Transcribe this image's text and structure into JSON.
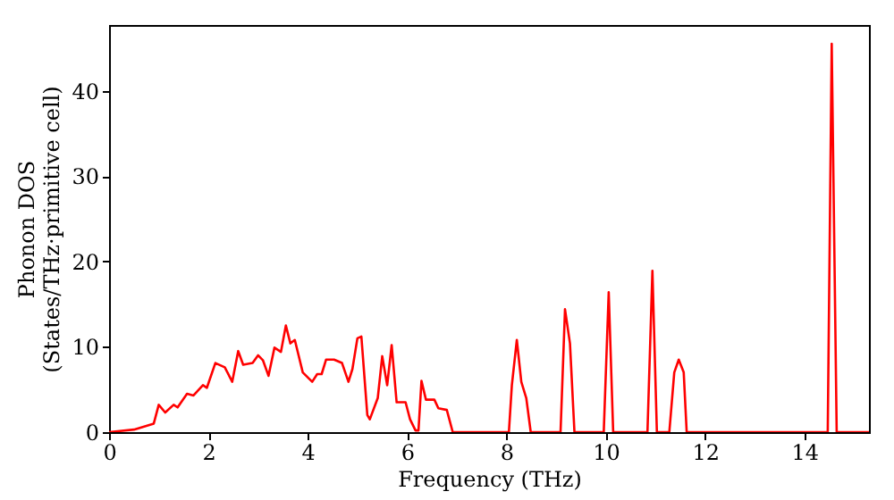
{
  "chart_data": {
    "type": "line",
    "xlabel": "Frequency (THz)",
    "ylabel": "Phonon DOS\n(States/THz·primitive cell)",
    "xlim": [
      0,
      15.3
    ],
    "ylim": [
      0,
      47.7
    ],
    "xticks": [
      0,
      2,
      4,
      6,
      8,
      10,
      12,
      14
    ],
    "yticks": [
      0,
      10,
      20,
      30,
      40
    ],
    "grid": false,
    "line_style": "solid",
    "marker": "none",
    "series": [
      {
        "color": "#ff0000",
        "x": [
          0,
          0.5,
          0.9,
          1.0,
          1.13,
          1.3,
          1.38,
          1.57,
          1.7,
          1.89,
          1.97,
          2.14,
          2.33,
          2.48,
          2.6,
          2.7,
          2.89,
          3.0,
          3.1,
          3.21,
          3.33,
          3.46,
          3.56,
          3.65,
          3.74,
          3.9,
          4.09,
          4.19,
          4.28,
          4.37,
          4.53,
          4.69,
          4.82,
          4.9,
          5.0,
          5.08,
          5.2,
          5.25,
          5.41,
          5.5,
          5.6,
          5.69,
          5.79,
          5.97,
          6.06,
          6.17,
          6.23,
          6.29,
          6.38,
          6.55,
          6.63,
          6.8,
          6.92,
          8.05,
          8.11,
          8.21,
          8.3,
          8.4,
          8.49,
          9.09,
          9.18,
          9.28,
          9.37,
          9.96,
          10.06,
          10.15,
          10.84,
          10.94,
          11.03,
          11.28,
          11.38,
          11.47,
          11.57,
          11.63,
          14.47,
          14.55,
          14.65,
          15.3
        ],
        "values": [
          0,
          0.3,
          1,
          3.2,
          2.3,
          3.2,
          2.9,
          4.5,
          4.3,
          5.5,
          5.2,
          8.1,
          7.6,
          5.9,
          9.5,
          7.9,
          8.1,
          9,
          8.4,
          6.6,
          9.9,
          9.4,
          12.5,
          10.4,
          10.8,
          7,
          5.9,
          6.8,
          6.8,
          8.5,
          8.5,
          8.1,
          5.9,
          7.4,
          11,
          11.2,
          2.0,
          1.5,
          4,
          8.9,
          5.5,
          10.2,
          3.5,
          3.5,
          1.5,
          0.2,
          0.2,
          6,
          3.8,
          3.8,
          2.8,
          2.6,
          0,
          0,
          5.5,
          10.8,
          5.9,
          4,
          0,
          0,
          14.4,
          10.4,
          0,
          0,
          16.4,
          0,
          0,
          18.9,
          0,
          0,
          7,
          8.5,
          7,
          0,
          0,
          45.5,
          0,
          0
        ]
      }
    ]
  }
}
